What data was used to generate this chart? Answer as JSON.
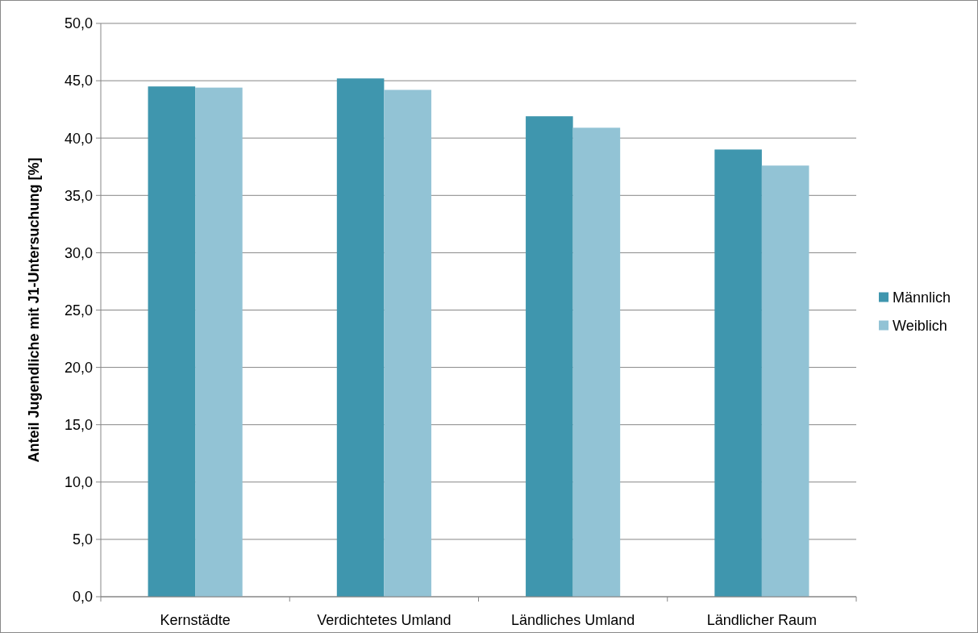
{
  "chart_data": {
    "type": "bar",
    "ylabel": "Anteil Jugendliche mit J1-Untersuchung [%]",
    "categories": [
      "Kernstädte",
      "Verdichtetes Umland",
      "Ländliches Umland",
      "Ländlicher Raum"
    ],
    "series": [
      {
        "name": "Männlich",
        "color": "#3f96ae",
        "values": [
          44.5,
          45.2,
          41.9,
          39.0
        ]
      },
      {
        "name": "Weiblich",
        "color": "#92c3d5",
        "values": [
          44.4,
          44.2,
          40.9,
          37.6
        ]
      }
    ],
    "ylim": [
      0,
      50
    ],
    "yticks": [
      {
        "value": 0,
        "label": "0,0"
      },
      {
        "value": 5,
        "label": "5,0"
      },
      {
        "value": 10,
        "label": "10,0"
      },
      {
        "value": 15,
        "label": "15,0"
      },
      {
        "value": 20,
        "label": "20,0"
      },
      {
        "value": 25,
        "label": "25,0"
      },
      {
        "value": 30,
        "label": "30,0"
      },
      {
        "value": 35,
        "label": "35,0"
      },
      {
        "value": 40,
        "label": "40,0"
      },
      {
        "value": 45,
        "label": "45,0"
      },
      {
        "value": 50,
        "label": "50,0"
      }
    ],
    "grid": "y",
    "legend": "right"
  }
}
